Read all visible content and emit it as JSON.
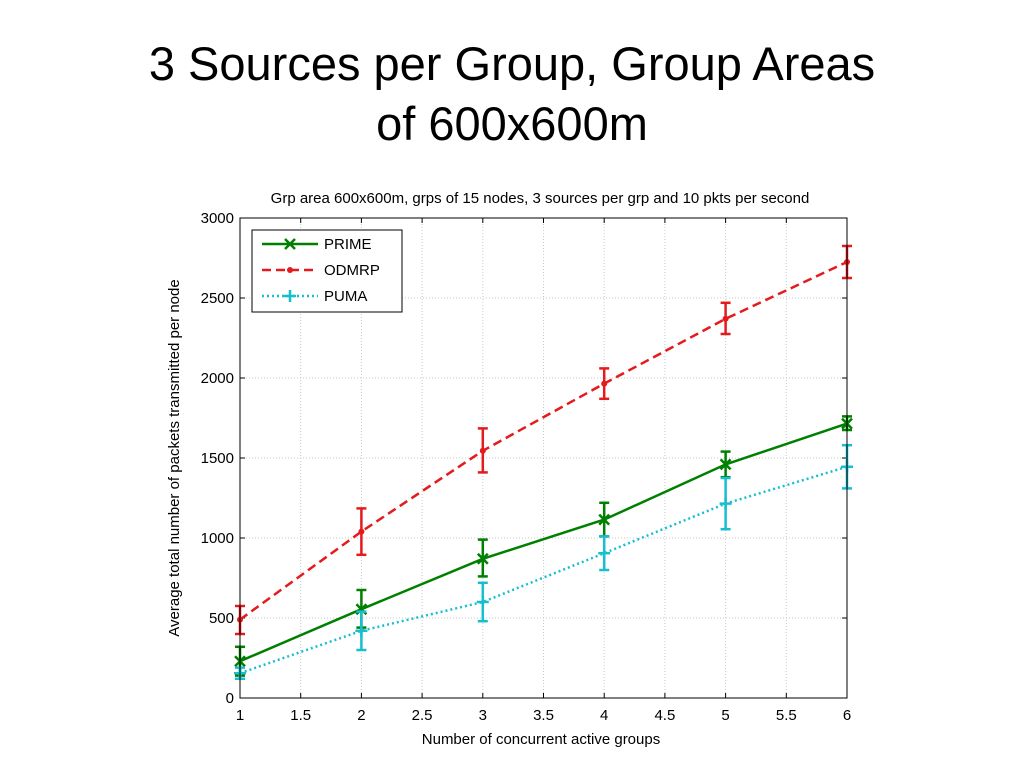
{
  "slide": {
    "title_line1": "3 Sources per Group, Group Areas",
    "title_line2": "of 600x600m"
  },
  "chart_data": {
    "type": "line",
    "title": "Grp area 600x600m, grps of 15 nodes, 3 sources per grp and 10 pkts per second",
    "xlabel": "Number of concurrent active groups",
    "ylabel": "Average total number of packets transmitted per node",
    "xlim": [
      1,
      6
    ],
    "ylim": [
      0,
      3000
    ],
    "xticks": [
      1,
      1.5,
      2,
      2.5,
      3,
      3.5,
      4,
      4.5,
      5,
      5.5,
      6
    ],
    "xtick_labels": [
      "1",
      "1.5",
      "2",
      "2.5",
      "3",
      "3.5",
      "4",
      "4.5",
      "5",
      "5.5",
      "6"
    ],
    "yticks": [
      0,
      500,
      1000,
      1500,
      2000,
      2500,
      3000
    ],
    "ytick_labels": [
      "0",
      "500",
      "1000",
      "1500",
      "2000",
      "2500",
      "3000"
    ],
    "grid": true,
    "legend_position": "top-left",
    "x": [
      1,
      2,
      3,
      4,
      5,
      6
    ],
    "series": [
      {
        "name": "PRIME",
        "color": "#008000",
        "line_style": "solid",
        "marker": "x",
        "values": [
          230,
          555,
          870,
          1115,
          1460,
          1715
        ],
        "error_low": [
          140,
          440,
          760,
          1010,
          1380,
          1675
        ],
        "error_high": [
          320,
          675,
          990,
          1220,
          1540,
          1760
        ]
      },
      {
        "name": "ODMRP",
        "color": "#e41a1c",
        "line_style": "dashed",
        "marker": "dot",
        "values": [
          490,
          1040,
          1545,
          1965,
          2370,
          2725
        ],
        "error_low": [
          400,
          895,
          1410,
          1870,
          2275,
          2625
        ],
        "error_high": [
          575,
          1185,
          1685,
          2060,
          2470,
          2825
        ]
      },
      {
        "name": "PUMA",
        "color": "#17becf",
        "line_style": "dotted",
        "marker": "plus",
        "values": [
          155,
          420,
          600,
          905,
          1215,
          1445
        ],
        "error_low": [
          120,
          300,
          480,
          800,
          1055,
          1310
        ],
        "error_high": [
          190,
          540,
          720,
          1010,
          1375,
          1580
        ]
      }
    ]
  }
}
